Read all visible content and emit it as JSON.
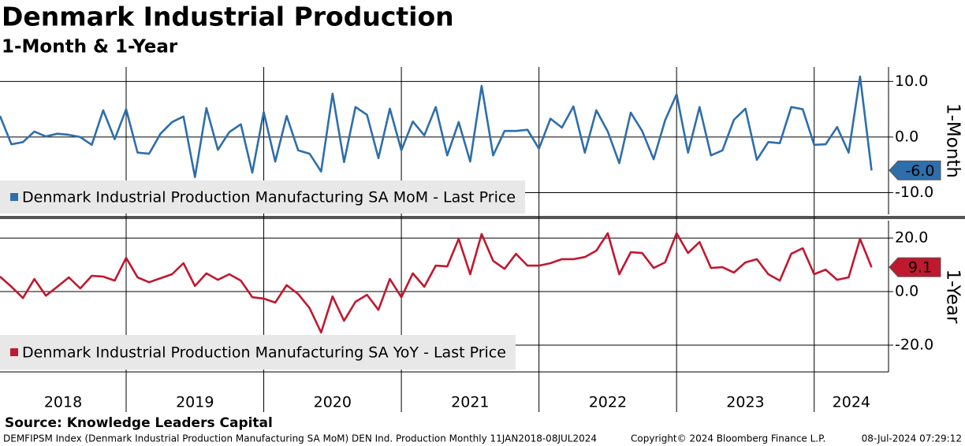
{
  "title": "Denmark Industrial Production",
  "subtitle": "1-Month & 1-Year",
  "source": "Source: Knowledge Leaders Capital",
  "footer": [
    "DEMFIPSM Index (Denmark Industrial Production Manufacturing SA MoM) DEN Ind. Production  Monthly 11JAN2018-08JUL2024",
    "Copyright© 2024 Bloomberg Finance L.P.",
    "08-Jul-2024 07:29:12"
  ],
  "year_labels": [
    "2018",
    "2019",
    "2020",
    "2021",
    "2022",
    "2023",
    "2024"
  ],
  "chart_data": [
    {
      "type": "line",
      "y_label": "1-Month",
      "ylim": [
        -13.9,
        12.6
      ],
      "yticks": [
        {
          "value": -10,
          "label": "-10.0"
        },
        {
          "value": 0,
          "label": "0.0"
        },
        {
          "value": 10,
          "label": "10.0"
        }
      ],
      "grid": true,
      "series": [
        {
          "name": "Denmark Industrial Production Manufacturing SA MoM - Last Price",
          "color": "#2e6eab",
          "values": [
            3.8,
            -1.3,
            -0.9,
            1.0,
            0.1,
            0.6,
            0.4,
            0,
            -1.4,
            4.8,
            -0.4,
            5.0,
            -2.8,
            -3.0,
            0.6,
            2.7,
            3.7,
            -7.2,
            5.2,
            -2.3,
            0.9,
            2.3,
            -6.4,
            4.5,
            -4.4,
            3.8,
            -2.4,
            -3.0,
            -6.2,
            7.8,
            -4.5,
            5.4,
            4.0,
            -3.8,
            5.1,
            -2.4,
            2.8,
            0.3,
            5.4,
            -3.3,
            2.7,
            -4.4,
            9.2,
            -3.3,
            1.1,
            1.1,
            1.3,
            -2.1,
            3.3,
            1.7,
            5.5,
            -2.8,
            4.8,
            1.0,
            -4.7,
            4.4,
            1.1,
            -4.0,
            3.0,
            7.7,
            -2.8,
            5.4,
            -3.3,
            -2.4,
            3.1,
            5.1,
            -4.1,
            -0.9,
            -1.1,
            5.4,
            5.0,
            -1.4,
            -1.3,
            1.8,
            -2.8,
            10.9,
            -6.0
          ],
          "value_labels": [
            null,
            null,
            null,
            null,
            null,
            null,
            null,
            null,
            null,
            null,
            null,
            null,
            null,
            null,
            null,
            null,
            null,
            null,
            null,
            null,
            null,
            null,
            null,
            null,
            null,
            null,
            null,
            null,
            null,
            null,
            null,
            null,
            null,
            null,
            null,
            null,
            null,
            null,
            null,
            null,
            null,
            null,
            null,
            null,
            null,
            null,
            null,
            null,
            null,
            null,
            null,
            null,
            null,
            null,
            null,
            null,
            null,
            null,
            null,
            null,
            null,
            null,
            null,
            null,
            null,
            null,
            null,
            null,
            null,
            null,
            null,
            null,
            null,
            null,
            null,
            null,
            "-6.0"
          ]
        }
      ]
    },
    {
      "type": "line",
      "y_label": "1-Year",
      "ylim": [
        -30,
        26.5
      ],
      "yticks": [
        {
          "value": -20,
          "label": "-20.0"
        },
        {
          "value": 0,
          "label": "0.0"
        },
        {
          "value": 20,
          "label": "20.0"
        }
      ],
      "grid": true,
      "series": [
        {
          "name": "Denmark Industrial Production Manufacturing SA YoY - Last Price",
          "color": "#c0182f",
          "values": [
            5.6,
            1.8,
            -2.4,
            4.7,
            -1.5,
            1.8,
            5.3,
            1.2,
            5.9,
            5.6,
            4.1,
            12.6,
            5.3,
            3.5,
            5.0,
            6.5,
            10.6,
            2.1,
            6.8,
            4.4,
            6.5,
            4.1,
            -2.1,
            -2.6,
            -4.1,
            2.4,
            -0.9,
            -6.2,
            -15.3,
            -1.8,
            -10.9,
            -3.8,
            -1.2,
            -6.8,
            4.7,
            -2.1,
            6.8,
            1.8,
            9.7,
            9.4,
            19.7,
            6.5,
            21.5,
            11.5,
            8.5,
            14.1,
            9.7,
            9.7,
            10.6,
            12.1,
            12.1,
            12.9,
            15.3,
            21.8,
            6.5,
            14.7,
            14.4,
            8.8,
            10.9,
            21.8,
            14.4,
            18.5,
            8.8,
            9.1,
            7.1,
            10.9,
            12.1,
            6.5,
            4.1,
            14.1,
            16.2,
            6.5,
            8.2,
            4.4,
            5.3,
            19.7,
            9.1
          ],
          "value_labels": [
            null,
            null,
            null,
            null,
            null,
            null,
            null,
            null,
            null,
            null,
            null,
            null,
            null,
            null,
            null,
            null,
            null,
            null,
            null,
            null,
            null,
            null,
            null,
            null,
            null,
            null,
            null,
            null,
            null,
            null,
            null,
            null,
            null,
            null,
            null,
            null,
            null,
            null,
            null,
            null,
            null,
            null,
            null,
            null,
            null,
            null,
            null,
            null,
            null,
            null,
            null,
            null,
            null,
            null,
            null,
            null,
            null,
            null,
            null,
            null,
            null,
            null,
            null,
            null,
            null,
            null,
            null,
            null,
            null,
            null,
            null,
            null,
            null,
            null,
            null,
            null,
            "9.1"
          ]
        }
      ]
    }
  ]
}
